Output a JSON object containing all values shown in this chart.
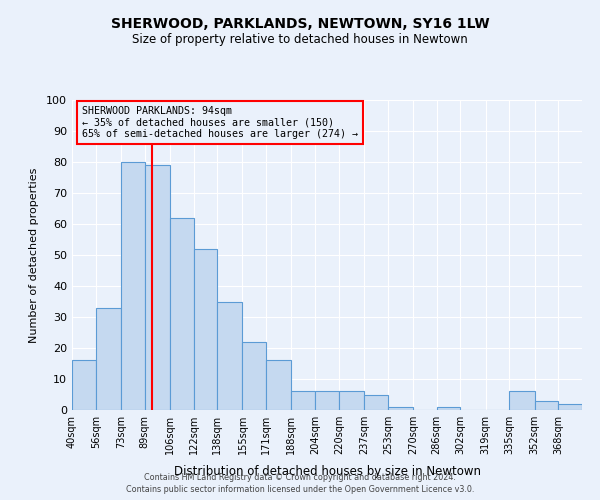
{
  "title": "SHERWOOD, PARKLANDS, NEWTOWN, SY16 1LW",
  "subtitle": "Size of property relative to detached houses in Newtown",
  "xlabel": "Distribution of detached houses by size in Newtown",
  "ylabel": "Number of detached properties",
  "bin_labels": [
    "40sqm",
    "56sqm",
    "73sqm",
    "89sqm",
    "106sqm",
    "122sqm",
    "138sqm",
    "155sqm",
    "171sqm",
    "188sqm",
    "204sqm",
    "220sqm",
    "237sqm",
    "253sqm",
    "270sqm",
    "286sqm",
    "302sqm",
    "319sqm",
    "335sqm",
    "352sqm",
    "368sqm"
  ],
  "bin_edges": [
    40,
    56,
    73,
    89,
    106,
    122,
    138,
    155,
    171,
    188,
    204,
    220,
    237,
    253,
    270,
    286,
    302,
    319,
    335,
    352,
    368,
    384
  ],
  "bin_values": [
    16,
    33,
    80,
    79,
    62,
    52,
    35,
    22,
    16,
    6,
    6,
    6,
    5,
    1,
    0,
    1,
    0,
    0,
    6,
    3,
    2
  ],
  "bar_color": "#c5d9f0",
  "bar_edge_color": "#5b9bd5",
  "property_line_x": 94,
  "property_line_color": "red",
  "annotation_title": "SHERWOOD PARKLANDS: 94sqm",
  "annotation_line1": "← 35% of detached houses are smaller (150)",
  "annotation_line2": "65% of semi-detached houses are larger (274) →",
  "annotation_box_color": "red",
  "ylim": [
    0,
    100
  ],
  "yticks": [
    0,
    10,
    20,
    30,
    40,
    50,
    60,
    70,
    80,
    90,
    100
  ],
  "bg_color": "#eaf1fb",
  "grid_color": "#ffffff",
  "footer1": "Contains HM Land Registry data © Crown copyright and database right 2024.",
  "footer2": "Contains public sector information licensed under the Open Government Licence v3.0."
}
